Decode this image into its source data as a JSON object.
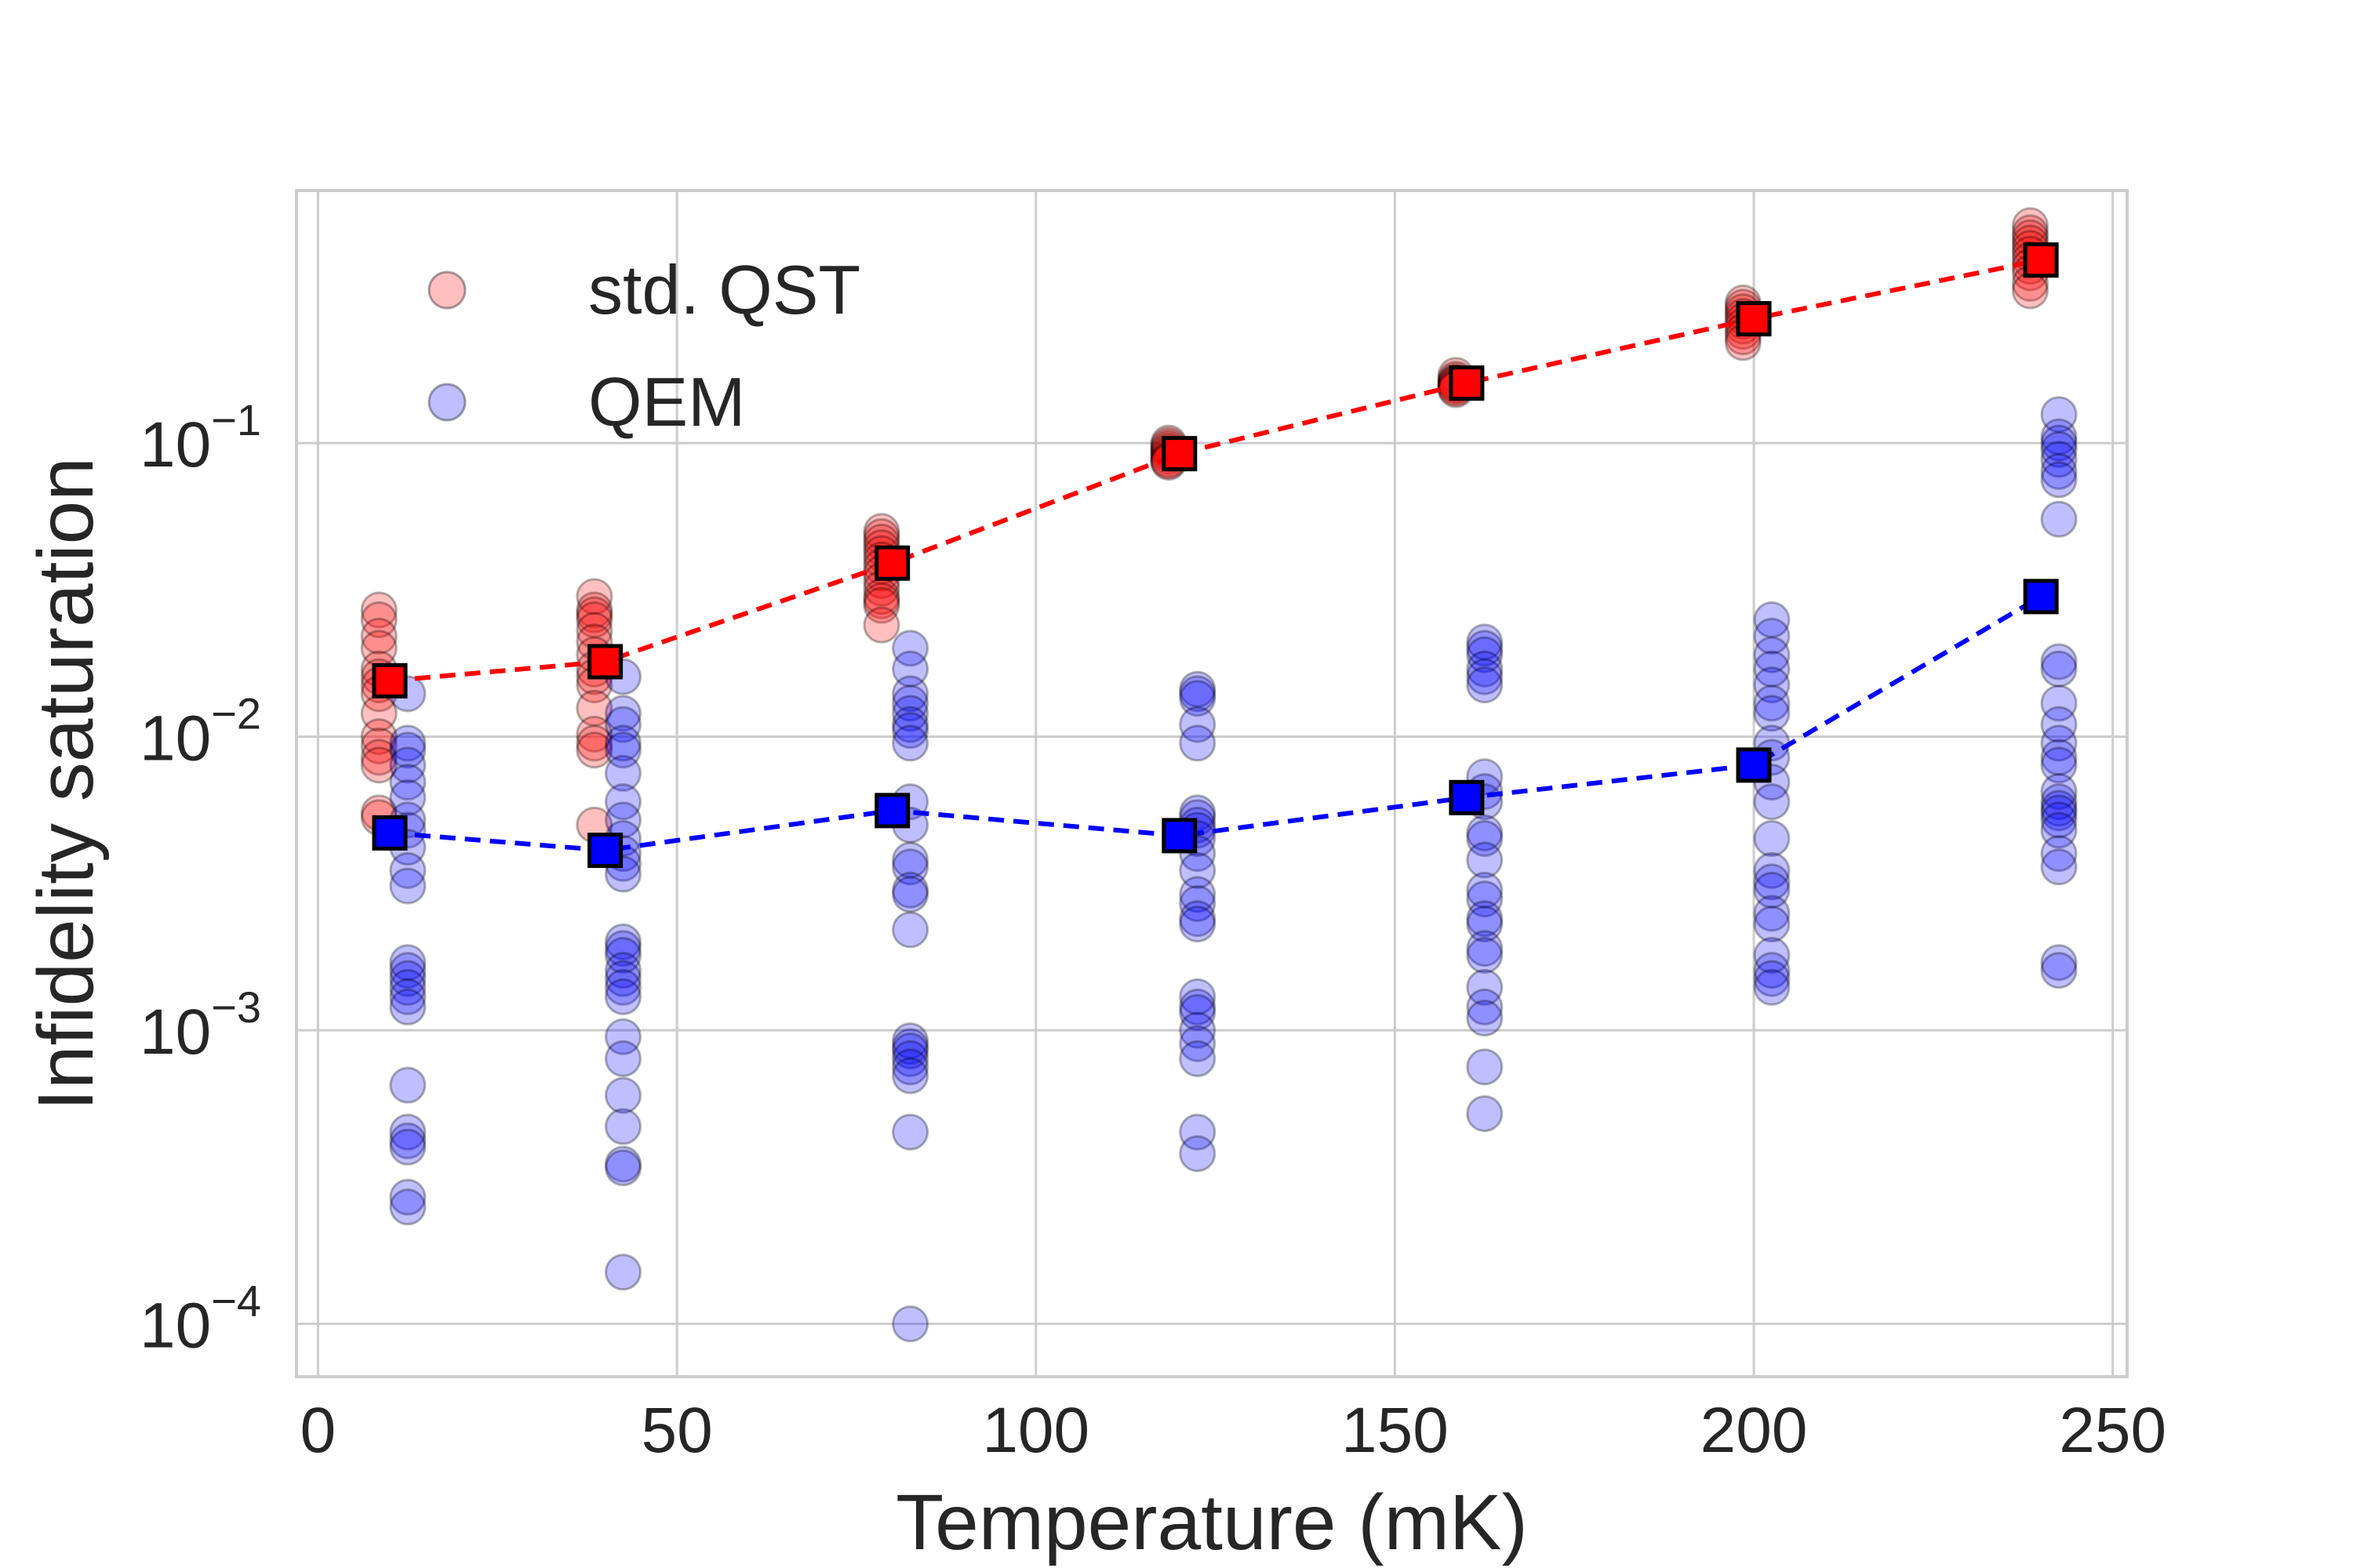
{
  "chart_data": {
    "type": "scatter",
    "title": "",
    "xlabel": "Temperature (mK)",
    "ylabel": "Infidelity saturation",
    "xlim": [
      -3,
      252
    ],
    "ylim_log10": [
      -4.18,
      -0.14
    ],
    "yscale": "log",
    "grid": true,
    "legend_position": "upper-left",
    "xticks": [
      0,
      50,
      100,
      150,
      200,
      250
    ],
    "xtick_labels": [
      "0",
      "50",
      "100",
      "150",
      "200",
      "250"
    ],
    "yticks": [
      -4,
      -3,
      -2,
      -1
    ],
    "ytick_base": "10",
    "ytick_exponents": [
      "−4",
      "−3",
      "−2",
      "−1"
    ],
    "series": [
      {
        "name": "std. QST",
        "color": "#ff0000",
        "marker": "circle",
        "points": [
          {
            "t": 8.5,
            "v": [
              0.027,
              0.025,
              0.022,
              0.02,
              0.017,
              0.016,
              0.015,
              0.014,
              0.012,
              0.01,
              0.0093,
              0.0085,
              0.008,
              0.0055,
              0.0053
            ]
          },
          {
            "t": 38.5,
            "v": [
              0.03,
              0.027,
              0.026,
              0.025,
              0.023,
              0.021,
              0.019,
              0.017,
              0.016,
              0.015,
              0.0125,
              0.0102,
              0.0095,
              0.009,
              0.005
            ]
          },
          {
            "t": 78.5,
            "v": [
              0.05,
              0.048,
              0.046,
              0.044,
              0.042,
              0.04,
              0.038,
              0.036,
              0.034,
              0.032,
              0.03,
              0.029,
              0.028,
              0.024
            ]
          },
          {
            "t": 118.5,
            "v": [
              0.1,
              0.098,
              0.096,
              0.094,
              0.092,
              0.09,
              0.088,
              0.087,
              0.086
            ]
          },
          {
            "t": 158.5,
            "v": [
              0.17,
              0.165,
              0.162,
              0.16,
              0.158,
              0.156,
              0.154,
              0.152
            ]
          },
          {
            "t": 198.5,
            "v": [
              0.3,
              0.29,
              0.28,
              0.27,
              0.26,
              0.25,
              0.24,
              0.23,
              0.22
            ]
          },
          {
            "t": 238.5,
            "v": [
              0.55,
              0.52,
              0.5,
              0.48,
              0.46,
              0.44,
              0.42,
              0.4,
              0.38,
              0.35,
              0.33
            ]
          }
        ]
      },
      {
        "name": "QEM",
        "color": "#0000ff",
        "marker": "circle",
        "points": [
          {
            "t": 12.5,
            "v": [
              0.014,
              0.0095,
              0.009,
              0.008,
              0.007,
              0.0062,
              0.0052,
              0.0048,
              0.0042,
              0.0035,
              0.0031,
              0.0017,
              0.0016,
              0.0015,
              0.0014,
              0.0013,
              0.0012,
              0.00065,
              0.00045,
              0.00042,
              0.0004,
              0.00027,
              0.00025
            ]
          },
          {
            "t": 42.5,
            "v": [
              0.016,
              0.012,
              0.011,
              0.0095,
              0.009,
              0.0075,
              0.006,
              0.0052,
              0.0045,
              0.004,
              0.0037,
              0.0034,
              0.002,
              0.0019,
              0.0018,
              0.0016,
              0.0015,
              0.0014,
              0.0013,
              0.00095,
              0.0008,
              0.0006,
              0.00047,
              0.00035,
              0.00034,
              0.00015
            ]
          },
          {
            "t": 82.5,
            "v": [
              0.02,
              0.017,
              0.014,
              0.013,
              0.012,
              0.011,
              0.0105,
              0.0095,
              0.006,
              0.005,
              0.0038,
              0.0036,
              0.003,
              0.0029,
              0.0022,
              0.00092,
              0.00088,
              0.00085,
              0.0008,
              0.00075,
              0.0007,
              0.00045,
              0.0001
            ]
          },
          {
            "t": 122.5,
            "v": [
              0.0145,
              0.014,
              0.0135,
              0.011,
              0.0095,
              0.0055,
              0.0053,
              0.005,
              0.0048,
              0.0045,
              0.004,
              0.0035,
              0.0029,
              0.0027,
              0.0024,
              0.0023,
              0.0013,
              0.0012,
              0.00115,
              0.001,
              0.0009,
              0.0008,
              0.00045,
              0.00038
            ]
          },
          {
            "t": 162.5,
            "v": [
              0.021,
              0.02,
              0.019,
              0.017,
              0.016,
              0.015,
              0.0073,
              0.0065,
              0.006,
              0.0047,
              0.0045,
              0.0038,
              0.003,
              0.0028,
              0.0024,
              0.0023,
              0.0019,
              0.0018,
              0.0014,
              0.0012,
              0.0011,
              0.00075,
              0.00052
            ]
          },
          {
            "t": 202.5,
            "v": [
              0.025,
              0.022,
              0.019,
              0.017,
              0.015,
              0.013,
              0.012,
              0.0095,
              0.0085,
              0.007,
              0.006,
              0.0045,
              0.0035,
              0.0032,
              0.003,
              0.0025,
              0.0023,
              0.0018,
              0.0016,
              0.0015,
              0.0014
            ]
          },
          {
            "t": 242.5,
            "v": [
              0.125,
              0.105,
              0.1,
              0.095,
              0.088,
              0.08,
              0.075,
              0.055,
              0.018,
              0.017,
              0.013,
              0.011,
              0.0095,
              0.0085,
              0.008,
              0.0065,
              0.006,
              0.0057,
              0.0055,
              0.0052,
              0.0048,
              0.004,
              0.0036,
              0.0017,
              0.0016
            ]
          }
        ]
      }
    ],
    "mean_series": [
      {
        "name": "std. QST mean",
        "color": "#ff0000",
        "marker": "square",
        "linestyle": "dashed",
        "x": [
          10,
          40,
          80,
          120,
          160,
          200,
          240
        ],
        "y": [
          0.0155,
          0.018,
          0.039,
          0.092,
          0.16,
          0.265,
          0.42
        ]
      },
      {
        "name": "QEM mean",
        "color": "#0000ff",
        "marker": "square",
        "linestyle": "dashed",
        "x": [
          10,
          40,
          80,
          120,
          160,
          200,
          240
        ],
        "y": [
          0.0047,
          0.0041,
          0.0056,
          0.0046,
          0.0062,
          0.008,
          0.03
        ]
      }
    ],
    "legend": [
      {
        "label": "std. QST",
        "color": "#ff0000"
      },
      {
        "label": "QEM",
        "color": "#0000ff"
      }
    ]
  }
}
